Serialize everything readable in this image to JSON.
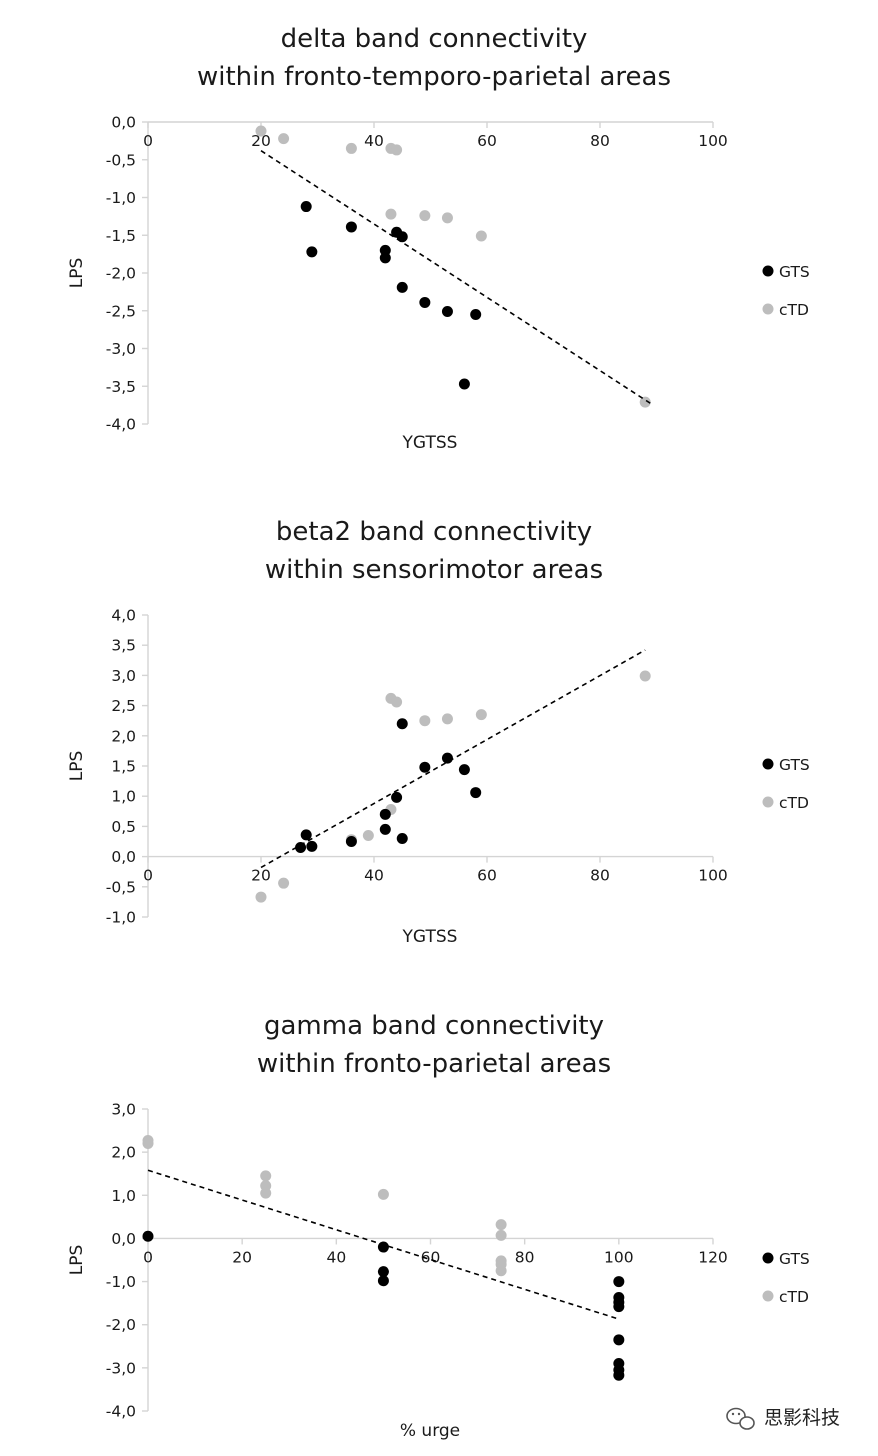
{
  "chart_data": [
    {
      "type": "scatter",
      "title": [
        "delta band connectivity",
        "within fronto-temporo-parietal areas"
      ],
      "xlabel": "YGTSS",
      "ylabel": "LPS",
      "xlim": [
        0,
        100
      ],
      "ylim": [
        -4.0,
        0.0
      ],
      "x_ticks": [
        0,
        20,
        40,
        60,
        80,
        100
      ],
      "y_ticks": [
        0.0,
        -0.5,
        -1.0,
        -1.5,
        -2.0,
        -2.5,
        -3.0,
        -3.5,
        -4.0
      ],
      "x_tick_labels": [
        "0",
        "20",
        "40",
        "60",
        "80",
        "100"
      ],
      "y_tick_labels": [
        "0,0",
        "-0,5",
        "-1,0",
        "-1,5",
        "-2,0",
        "-2,5",
        "-3,0",
        "-3,5",
        "-4,0"
      ],
      "legend": [
        "GTS",
        "cTD"
      ],
      "series": [
        {
          "name": "GTS",
          "color": "#000000",
          "points": [
            [
              28,
              -1.12
            ],
            [
              29,
              -1.72
            ],
            [
              36,
              -1.39
            ],
            [
              42,
              -1.7
            ],
            [
              42,
              -1.8
            ],
            [
              44,
              -1.46
            ],
            [
              45,
              -1.52
            ],
            [
              45,
              -2.19
            ],
            [
              49,
              -2.39
            ],
            [
              53,
              -2.51
            ],
            [
              56,
              -3.47
            ],
            [
              58,
              -2.55
            ]
          ]
        },
        {
          "name": "cTD",
          "color": "#bdbdbd",
          "points": [
            [
              20,
              -0.12
            ],
            [
              24,
              -0.22
            ],
            [
              36,
              -0.35
            ],
            [
              43,
              -0.35
            ],
            [
              44,
              -0.37
            ],
            [
              43,
              -1.22
            ],
            [
              49,
              -1.24
            ],
            [
              53,
              -1.27
            ],
            [
              59,
              -1.51
            ],
            [
              88,
              -3.71
            ]
          ]
        }
      ],
      "trendline": [
        [
          20,
          -0.38
        ],
        [
          89,
          -3.73
        ]
      ]
    },
    {
      "type": "scatter",
      "title": [
        "beta2 band connectivity",
        "within sensorimotor areas"
      ],
      "xlabel": "YGTSS",
      "ylabel": "LPS",
      "xlim": [
        0,
        100
      ],
      "ylim": [
        -1.0,
        4.0
      ],
      "x_ticks": [
        0,
        20,
        40,
        60,
        80,
        100
      ],
      "y_ticks": [
        4.0,
        3.5,
        3.0,
        2.5,
        2.0,
        1.5,
        1.0,
        0.5,
        0.0,
        -0.5,
        -1.0
      ],
      "x_tick_labels": [
        "0",
        "20",
        "40",
        "60",
        "80",
        "100"
      ],
      "y_tick_labels": [
        "4,0",
        "3,5",
        "3,0",
        "2,5",
        "2,0",
        "1,5",
        "1,0",
        "0,5",
        "0,0",
        "-0,5",
        "-1,0"
      ],
      "legend": [
        "GTS",
        "cTD"
      ],
      "series": [
        {
          "name": "GTS",
          "color": "#000000",
          "points": [
            [
              27,
              0.15
            ],
            [
              28,
              0.36
            ],
            [
              29,
              0.17
            ],
            [
              36,
              0.25
            ],
            [
              42,
              0.7
            ],
            [
              42,
              0.45
            ],
            [
              44,
              0.98
            ],
            [
              45,
              2.2
            ],
            [
              45,
              0.3
            ],
            [
              49,
              1.48
            ],
            [
              53,
              1.63
            ],
            [
              56,
              1.44
            ],
            [
              58,
              1.06
            ]
          ]
        },
        {
          "name": "cTD",
          "color": "#bdbdbd",
          "points": [
            [
              20,
              -0.67
            ],
            [
              24,
              -0.44
            ],
            [
              36,
              0.28
            ],
            [
              39,
              0.35
            ],
            [
              43,
              0.78
            ],
            [
              43,
              2.62
            ],
            [
              44,
              2.56
            ],
            [
              49,
              2.25
            ],
            [
              53,
              2.28
            ],
            [
              59,
              2.35
            ],
            [
              88,
              2.99
            ]
          ]
        }
      ],
      "trendline": [
        [
          20,
          -0.18
        ],
        [
          88,
          3.42
        ]
      ]
    },
    {
      "type": "scatter",
      "title": [
        "gamma band connectivity",
        "within fronto-parietal areas"
      ],
      "xlabel": "% urge",
      "ylabel": "LPS",
      "xlim": [
        0,
        120
      ],
      "ylim": [
        -4.0,
        3.0
      ],
      "x_ticks": [
        0,
        20,
        40,
        60,
        80,
        100,
        120
      ],
      "y_ticks": [
        3.0,
        2.0,
        1.0,
        0.0,
        -1.0,
        -2.0,
        -3.0,
        -4.0
      ],
      "x_tick_labels": [
        "0",
        "20",
        "40",
        "60",
        "80",
        "100",
        "120"
      ],
      "y_tick_labels": [
        "3,0",
        "2,0",
        "1,0",
        "0,0",
        "-1,0",
        "-2,0",
        "-3,0",
        "-4,0"
      ],
      "legend": [
        "GTS",
        "cTD"
      ],
      "series": [
        {
          "name": "GTS",
          "color": "#000000",
          "points": [
            [
              0,
              0.05
            ],
            [
              50,
              -0.2
            ],
            [
              50,
              -0.77
            ],
            [
              50,
              -0.98
            ],
            [
              100,
              -1.0
            ],
            [
              100,
              -1.37
            ],
            [
              100,
              -1.48
            ],
            [
              100,
              -1.58
            ],
            [
              100,
              -2.35
            ],
            [
              100,
              -2.9
            ],
            [
              100,
              -3.05
            ],
            [
              100,
              -3.17
            ]
          ]
        },
        {
          "name": "cTD",
          "color": "#bdbdbd",
          "points": [
            [
              0,
              2.27
            ],
            [
              0,
              2.2
            ],
            [
              25,
              1.45
            ],
            [
              25,
              1.22
            ],
            [
              25,
              1.05
            ],
            [
              50,
              1.02
            ],
            [
              75,
              0.32
            ],
            [
              75,
              0.07
            ],
            [
              75,
              -0.52
            ],
            [
              75,
              -0.6
            ],
            [
              75,
              -0.75
            ]
          ]
        }
      ],
      "trendline": [
        [
          0,
          1.58
        ],
        [
          100,
          -1.87
        ]
      ]
    }
  ],
  "watermark": {
    "text": "思影科技",
    "icon": "wechat-icon"
  }
}
